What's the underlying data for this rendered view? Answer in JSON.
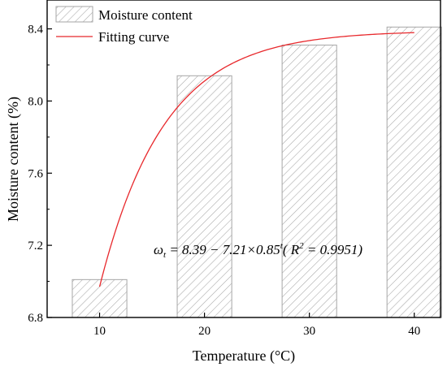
{
  "chart_data": {
    "type": "bar",
    "categories": [
      "10",
      "20",
      "30",
      "40"
    ],
    "x": [
      10,
      20,
      30,
      40
    ],
    "values": [
      7.01,
      8.14,
      8.31,
      8.41
    ],
    "xlabel": "Temperature (°C)",
    "ylabel": "Moisture content (%)",
    "xlim": [
      5,
      42.5
    ],
    "ylim": [
      6.8,
      8.56
    ],
    "yticks": [
      "6.8",
      "7.2",
      "7.6",
      "8.0",
      "8.4"
    ],
    "ytick_values": [
      6.8,
      7.2,
      7.6,
      8.0,
      8.4
    ],
    "grid": false,
    "legend_position": "top-left",
    "series": [
      {
        "name": "Moisture content",
        "kind": "bar",
        "values": [
          7.01,
          8.14,
          8.31,
          8.41
        ],
        "fill": "hatched",
        "color": "#a6a6a6"
      },
      {
        "name": "Fitting curve",
        "kind": "line",
        "color": "#e8282c",
        "equation": {
          "a": 8.39,
          "b": 7.21,
          "c": 0.85
        },
        "x_range": [
          10,
          40
        ]
      }
    ],
    "annotation": {
      "lhs": "ω",
      "lhs_sub": "t",
      "rhs_main": " = 8.39 − 7.21×0.85",
      "rhs_sup": "t",
      "r_open": "( ",
      "r_label": "R",
      "r_sup": "2",
      "r_value": " = 0.9951",
      "r_close": ")"
    }
  }
}
